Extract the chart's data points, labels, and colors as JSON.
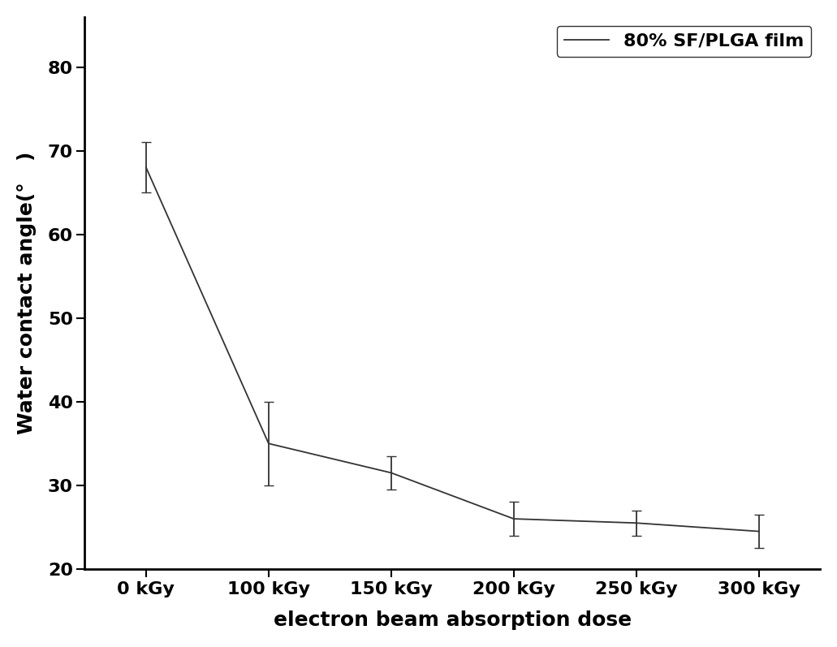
{
  "x_labels": [
    "0 kGy",
    "100 kGy",
    "150 kGy",
    "200 kGy",
    "250 kGy",
    "300 kGy"
  ],
  "x_values": [
    0,
    1,
    2,
    3,
    4,
    5
  ],
  "y_values": [
    68.0,
    35.0,
    31.5,
    26.0,
    25.5,
    24.5
  ],
  "y_errors": [
    3.0,
    5.0,
    2.0,
    2.0,
    1.5,
    2.0
  ],
  "line_color": "#333333",
  "line_width": 1.3,
  "ylabel": "Water contact angle(°   )",
  "xlabel": "electron beam absorption dose",
  "legend_label": "80% SF/PLGA film",
  "ylim": [
    20,
    86
  ],
  "yticks": [
    20,
    30,
    40,
    50,
    60,
    70,
    80
  ],
  "background_color": "#ffffff",
  "axis_label_fontsize": 18,
  "tick_fontsize": 16,
  "legend_fontsize": 16,
  "capsize": 4,
  "elinewidth": 1.3,
  "ecolor": "#333333",
  "spine_linewidth": 2.0
}
